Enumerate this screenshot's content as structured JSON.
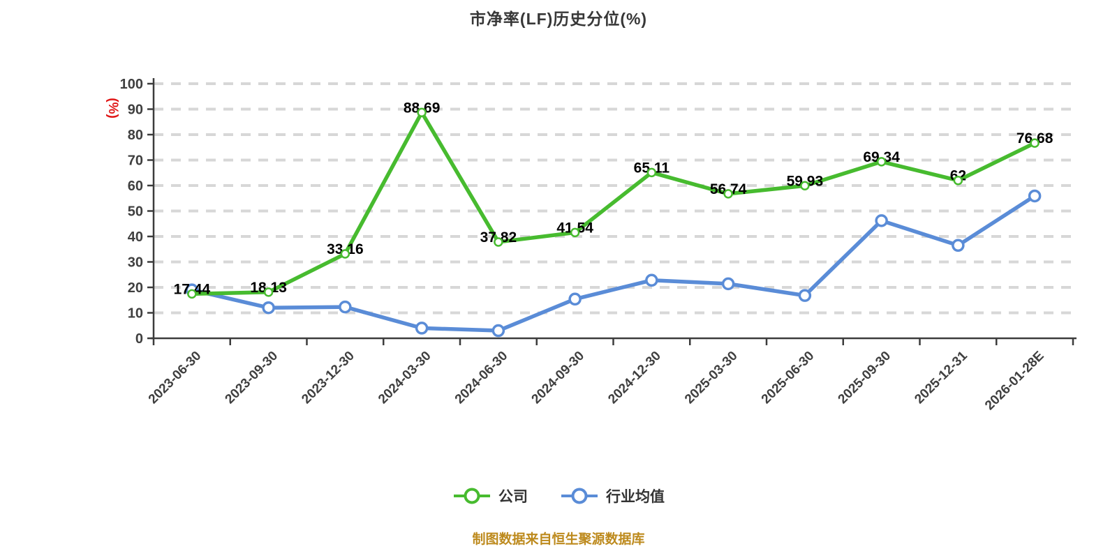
{
  "title": "市净率(LF)历史分位(%)",
  "footer_note": "制图数据来自恒生聚源数据库",
  "y_axis": {
    "unit_label": "(%)",
    "unit_color": "#e01616",
    "min": 0,
    "max": 100,
    "tick_step": 10,
    "tick_labels": [
      "0",
      "10",
      "20",
      "30",
      "40",
      "50",
      "60",
      "70",
      "80",
      "90",
      "100"
    ]
  },
  "legend": {
    "items": [
      {
        "label": "公司",
        "color": "#47bb2f"
      },
      {
        "label": "行业均值",
        "color": "#5a8cd7"
      }
    ]
  },
  "chart_data": {
    "type": "line",
    "title": "市净率(LF)历史分位(%)",
    "ylabel": "(%)",
    "ylim": [
      0,
      100
    ],
    "grid": "horizontal-dashed",
    "legend_position": "bottom",
    "categories": [
      "2023-06-30",
      "2023-09-30",
      "2023-12-30",
      "2024-03-30",
      "2024-06-30",
      "2024-09-30",
      "2024-12-30",
      "2025-03-30",
      "2025-06-30",
      "2025-09-30",
      "2025-12-31",
      "2026-01-28E"
    ],
    "series": [
      {
        "name": "公司",
        "color": "#47bb2f",
        "show_labels": true,
        "values": [
          17.44,
          18.13,
          33.16,
          88.69,
          37.82,
          41.54,
          65.11,
          56.74,
          59.93,
          69.34,
          62,
          76.68
        ],
        "labels": [
          "17.44",
          "18.13",
          "33.16",
          "88.69",
          "37.82",
          "41.54",
          "65.11",
          "56.74",
          "59.93",
          "69.34",
          "62",
          "76.68"
        ]
      },
      {
        "name": "行业均值",
        "color": "#5a8cd7",
        "show_labels": false,
        "values": [
          19,
          12,
          12.3,
          4,
          3,
          15.4,
          22.8,
          21.4,
          16.8,
          46.2,
          36.5,
          55.9
        ],
        "labels": []
      }
    ]
  },
  "style": {
    "background": "#ffffff",
    "grid_color": "#d7d7d7",
    "axis_color": "#3c3c3c",
    "tick_label_color": "#3f3f3f",
    "value_label_color": "#000000",
    "footer_color": "#bd8a1d"
  }
}
